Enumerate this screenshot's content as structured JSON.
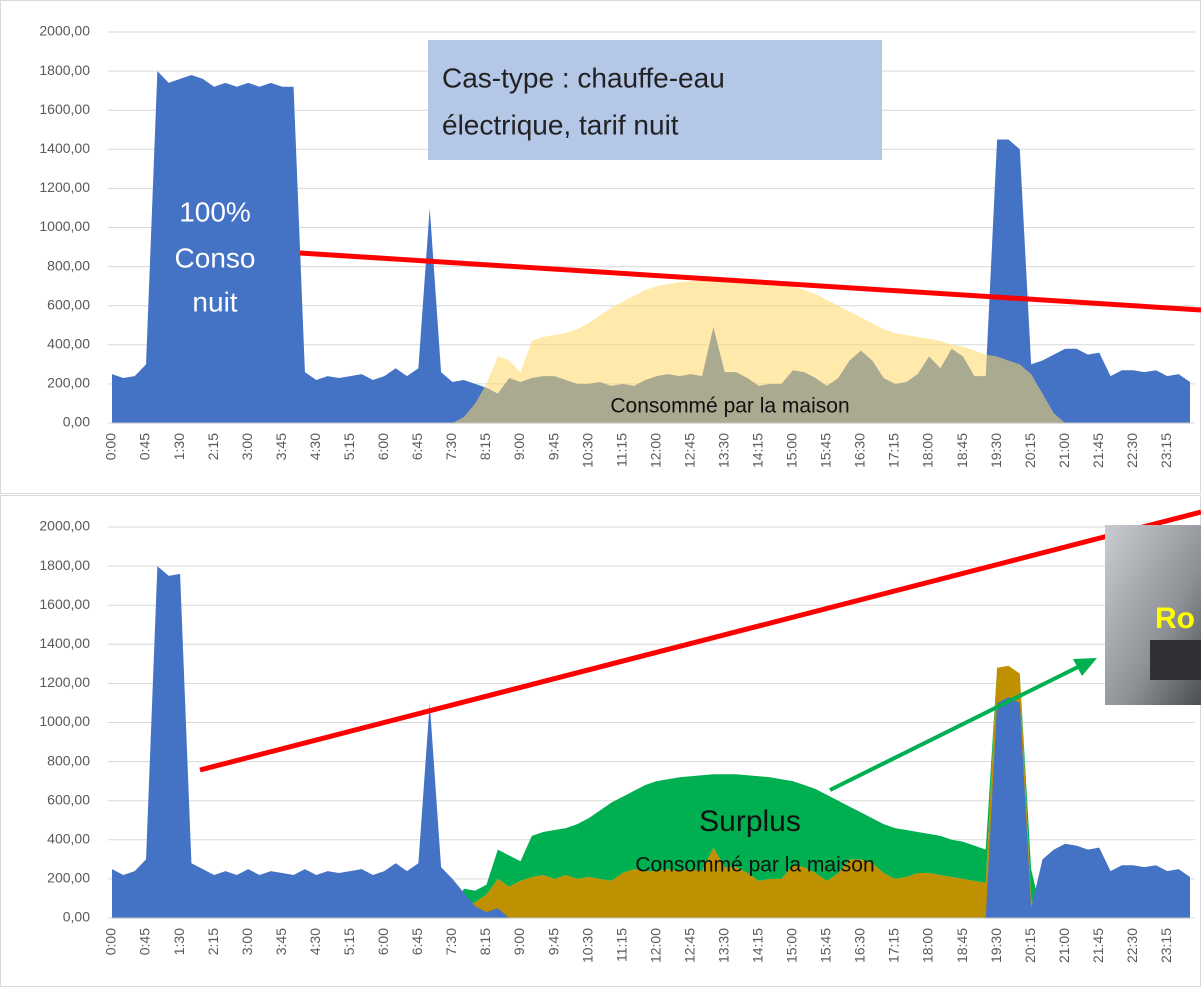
{
  "chart_data": [
    {
      "type": "area",
      "categories": [
        "0:00",
        null,
        null,
        "0:45",
        null,
        null,
        "1:30",
        null,
        null,
        "2:15",
        null,
        null,
        "3:00",
        null,
        null,
        "3:45",
        null,
        null,
        "4:30",
        null,
        null,
        "5:15",
        null,
        null,
        "6:00",
        null,
        null,
        "6:45",
        null,
        null,
        "7:30",
        null,
        null,
        "8:15",
        null,
        null,
        "9:00",
        null,
        null,
        "9:45",
        null,
        null,
        "10:30",
        null,
        null,
        "11:15",
        null,
        null,
        "12:00",
        null,
        null,
        "12:45",
        null,
        null,
        "13:30",
        null,
        null,
        "14:15",
        null,
        null,
        "15:00",
        null,
        null,
        "15:45",
        null,
        null,
        "16:30",
        null,
        null,
        "17:15",
        null,
        null,
        "18:00",
        null,
        null,
        "18:45",
        null,
        null,
        "19:30",
        null,
        null,
        "20:15",
        null,
        null,
        "21:00",
        null,
        null,
        "21:45",
        null,
        null,
        "22:30",
        null,
        null,
        "23:15",
        null,
        null
      ],
      "series": [
        {
          "color": "#4472c4",
          "opacity": 1,
          "values": [
            250,
            230,
            240,
            300,
            1800,
            1740,
            1760,
            1780,
            1760,
            1720,
            1740,
            1720,
            1740,
            1720,
            1740,
            1720,
            1720,
            260,
            220,
            240,
            230,
            240,
            250,
            220,
            240,
            280,
            240,
            280,
            1100,
            260,
            210,
            220,
            200,
            180,
            150,
            230,
            210,
            230,
            240,
            240,
            220,
            200,
            200,
            210,
            190,
            200,
            190,
            220,
            240,
            250,
            240,
            250,
            240,
            490,
            260,
            260,
            230,
            190,
            200,
            200,
            270,
            260,
            230,
            190,
            230,
            320,
            370,
            320,
            230,
            200,
            210,
            250,
            340,
            280,
            380,
            340,
            240,
            240,
            1450,
            1450,
            1400,
            300,
            320,
            350,
            380,
            380,
            350,
            360,
            240,
            270,
            270,
            260,
            270,
            240,
            250,
            210
          ]
        },
        {
          "color": "#ffd966",
          "opacity": 0.55,
          "values": [
            0,
            0,
            0,
            0,
            0,
            0,
            0,
            0,
            0,
            0,
            0,
            0,
            0,
            0,
            0,
            0,
            0,
            0,
            0,
            0,
            0,
            0,
            0,
            0,
            0,
            0,
            0,
            0,
            0,
            0,
            0,
            30,
            100,
            200,
            340,
            320,
            260,
            420,
            440,
            450,
            460,
            480,
            510,
            550,
            590,
            620,
            650,
            680,
            700,
            710,
            720,
            725,
            730,
            735,
            735,
            735,
            730,
            725,
            720,
            710,
            700,
            680,
            660,
            630,
            600,
            570,
            540,
            510,
            480,
            460,
            450,
            440,
            430,
            420,
            400,
            390,
            370,
            350,
            340,
            320,
            300,
            250,
            150,
            50,
            0,
            0,
            0,
            0,
            0,
            0,
            0,
            0,
            0,
            0,
            0,
            0
          ]
        }
      ],
      "ylim": [
        0,
        2000
      ],
      "yticks": [
        {
          "value": 0,
          "label": "0,00"
        },
        {
          "value": 200,
          "label": "200,00"
        },
        {
          "value": 400,
          "label": "400,00"
        },
        {
          "value": 600,
          "label": "600,00"
        },
        {
          "value": 800,
          "label": "800,00"
        },
        {
          "value": 1000,
          "label": "1000,00"
        },
        {
          "value": 1200,
          "label": "1200,00"
        },
        {
          "value": 1400,
          "label": "1400,00"
        },
        {
          "value": 1600,
          "label": "1600,00"
        },
        {
          "value": 1800,
          "label": "1800,00"
        },
        {
          "value": 2000,
          "label": "2000,00"
        }
      ],
      "grid": true,
      "annotations": [
        "Cas-type : chauffe-eau",
        "électrique, tarif nuit",
        "100%",
        "Conso",
        "nuit",
        "Consommé par la maison"
      ]
    },
    {
      "type": "area",
      "categories": [
        "0:00",
        null,
        null,
        "0:45",
        null,
        null,
        "1:30",
        null,
        null,
        "2:15",
        null,
        null,
        "3:00",
        null,
        null,
        "3:45",
        null,
        null,
        "4:30",
        null,
        null,
        "5:15",
        null,
        null,
        "6:00",
        null,
        null,
        "6:45",
        null,
        null,
        "7:30",
        null,
        null,
        "8:15",
        null,
        null,
        "9:00",
        null,
        null,
        "9:45",
        null,
        null,
        "10:30",
        null,
        null,
        "11:15",
        null,
        null,
        "12:00",
        null,
        null,
        "12:45",
        null,
        null,
        "13:30",
        null,
        null,
        "14:15",
        null,
        null,
        "15:00",
        null,
        null,
        "15:45",
        null,
        null,
        "16:30",
        null,
        null,
        "17:15",
        null,
        null,
        "18:00",
        null,
        null,
        "18:45",
        null,
        null,
        "19:30",
        null,
        null,
        "20:15",
        null,
        null,
        "21:00",
        null,
        null,
        "21:45",
        null,
        null,
        "22:30",
        null,
        null,
        "23:15",
        null,
        null
      ],
      "series": [
        {
          "color": "#bf9000",
          "opacity": 1,
          "values": [
            0,
            0,
            0,
            0,
            0,
            0,
            0,
            0,
            0,
            0,
            0,
            0,
            0,
            0,
            0,
            0,
            0,
            0,
            0,
            0,
            0,
            0,
            0,
            0,
            0,
            0,
            0,
            0,
            0,
            0,
            0,
            60,
            80,
            120,
            200,
            160,
            190,
            210,
            220,
            200,
            220,
            200,
            210,
            200,
            190,
            230,
            250,
            240,
            240,
            250,
            240,
            250,
            240,
            360,
            260,
            260,
            230,
            190,
            200,
            200,
            270,
            260,
            230,
            190,
            230,
            300,
            300,
            280,
            230,
            200,
            210,
            230,
            230,
            220,
            210,
            200,
            190,
            180,
            1280,
            1290,
            1250,
            100,
            0,
            0,
            0,
            0,
            0,
            0,
            0,
            0,
            0,
            0,
            0,
            0,
            0,
            0
          ]
        },
        {
          "color": "#00b050",
          "opacity": 1,
          "stack": true,
          "values": [
            0,
            0,
            0,
            0,
            0,
            0,
            0,
            0,
            0,
            0,
            0,
            0,
            0,
            0,
            0,
            0,
            0,
            0,
            0,
            0,
            0,
            0,
            0,
            0,
            0,
            0,
            0,
            0,
            0,
            0,
            0,
            90,
            60,
            50,
            150,
            160,
            100,
            210,
            220,
            250,
            240,
            280,
            300,
            350,
            400,
            390,
            400,
            440,
            460,
            460,
            480,
            475,
            490,
            375,
            475,
            475,
            500,
            535,
            520,
            510,
            430,
            420,
            430,
            440,
            370,
            270,
            240,
            230,
            250,
            260,
            240,
            210,
            200,
            200,
            190,
            190,
            180,
            170,
            0,
            0,
            0,
            150,
            0,
            0,
            0,
            0,
            0,
            0,
            0,
            0,
            0,
            0,
            0,
            0,
            0,
            0
          ]
        },
        {
          "color": "#4472c4",
          "opacity": 1,
          "values": [
            250,
            220,
            240,
            300,
            1800,
            1750,
            1760,
            280,
            250,
            220,
            240,
            220,
            250,
            220,
            240,
            230,
            220,
            250,
            220,
            240,
            230,
            240,
            250,
            220,
            240,
            280,
            240,
            280,
            1100,
            260,
            200,
            130,
            60,
            30,
            50,
            0,
            0,
            0,
            0,
            0,
            0,
            0,
            0,
            0,
            0,
            0,
            0,
            0,
            0,
            0,
            0,
            0,
            0,
            0,
            0,
            0,
            0,
            0,
            0,
            0,
            0,
            0,
            0,
            0,
            0,
            0,
            0,
            0,
            0,
            0,
            0,
            0,
            0,
            0,
            0,
            0,
            0,
            0,
            1100,
            1130,
            1100,
            50,
            300,
            350,
            380,
            370,
            350,
            360,
            240,
            270,
            270,
            260,
            270,
            240,
            250,
            210
          ]
        }
      ],
      "ylim": [
        0,
        2000
      ],
      "yticks": [
        {
          "value": 0,
          "label": "0,00"
        },
        {
          "value": 200,
          "label": "200,00"
        },
        {
          "value": 400,
          "label": "400,00"
        },
        {
          "value": 600,
          "label": "600,00"
        },
        {
          "value": 800,
          "label": "800,00"
        },
        {
          "value": 1000,
          "label": "1000,00"
        },
        {
          "value": 1200,
          "label": "1200,00"
        },
        {
          "value": 1400,
          "label": "1400,00"
        },
        {
          "value": 1600,
          "label": "1600,00"
        },
        {
          "value": 1800,
          "label": "1800,00"
        },
        {
          "value": 2000,
          "label": "2000,00"
        }
      ],
      "grid": true,
      "annotations": [
        "Surplus",
        "Consommé par la maison",
        "Ro"
      ]
    }
  ]
}
